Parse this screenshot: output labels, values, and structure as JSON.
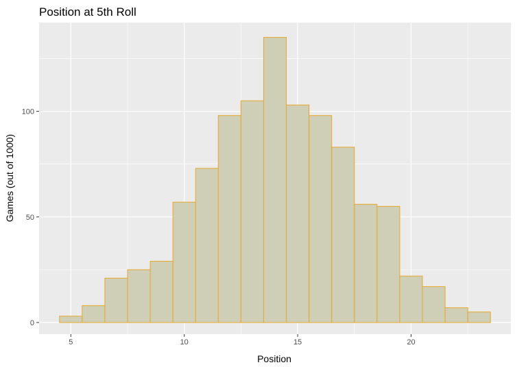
{
  "chart_data": {
    "type": "bar",
    "title": "Position at 5th Roll",
    "xlabel": "Position",
    "ylabel": "Games (out of 1000)",
    "x": [
      5,
      6,
      7,
      8,
      9,
      10,
      11,
      12,
      13,
      14,
      15,
      16,
      17,
      18,
      19,
      20,
      21,
      22,
      23
    ],
    "values": [
      3,
      8,
      21,
      25,
      29,
      57,
      73,
      98,
      105,
      135,
      103,
      98,
      83,
      56,
      55,
      22,
      17,
      7,
      5
    ],
    "xlim": [
      3.6,
      24.4
    ],
    "ylim": [
      -5.5,
      142
    ],
    "x_ticks": [
      5,
      10,
      15,
      20
    ],
    "y_ticks": [
      0,
      50,
      100
    ],
    "grid": true,
    "colors": {
      "panel": "#ebebeb",
      "grid_major": "#ffffff",
      "bar_fill": "#cfcfb8",
      "bar_outline": "#e6a82a",
      "tick_text": "#4d4d4d"
    }
  }
}
